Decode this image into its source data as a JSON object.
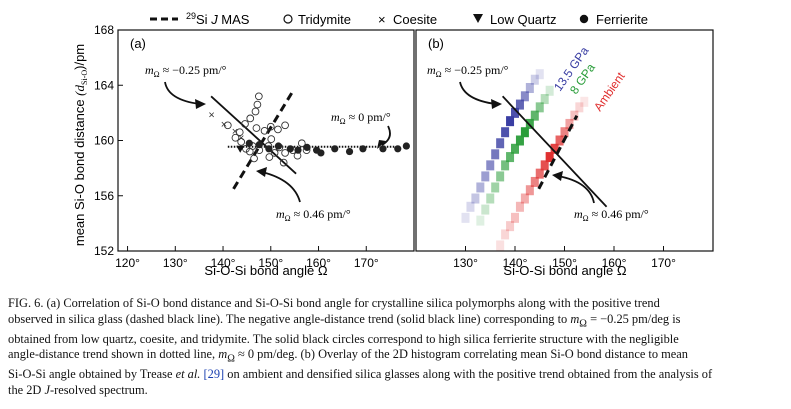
{
  "legend": {
    "entries": [
      {
        "marker": "dashed-line",
        "label_pre": "29",
        "label_main": "Si ",
        "label_italic": "J",
        "label_post": " MAS"
      },
      {
        "marker": "open-circle",
        "label": "Tridymite"
      },
      {
        "marker": "cross",
        "label": "Coesite"
      },
      {
        "marker": "down-triangle",
        "label": "Low Quartz"
      },
      {
        "marker": "filled-circle",
        "label": "Ferrierite"
      }
    ]
  },
  "chart_data": [
    {
      "type": "scatter",
      "panel_label": "(a)",
      "ylabel": "mean Si-O bond distance  (dSi-O)/pm",
      "ylabel_main": "mean Si-O bond distance  ",
      "ylabel_paren": "(d",
      "ylabel_sub": "Si-O",
      "ylabel_tail": ")/pm",
      "xlabel": "Si-O-Si bond angle Ω",
      "xlim": [
        118,
        180
      ],
      "ylim": [
        152,
        168
      ],
      "x_ticks": [
        "120°",
        "130°",
        "140°",
        "150°",
        "160°",
        "170°"
      ],
      "x_tick_values": [
        120,
        130,
        140,
        150,
        160,
        170
      ],
      "y_ticks": [
        "152",
        "156",
        "160",
        "164",
        "168"
      ],
      "y_tick_values": [
        152,
        156,
        160,
        164,
        168
      ],
      "grid": false,
      "series": [
        {
          "name": "Tridymite",
          "marker": "open-circle",
          "points": [
            [
              147.5,
              163.2
            ],
            [
              147.2,
              162.6
            ],
            [
              146.8,
              162.1
            ],
            [
              141,
              161.1
            ],
            [
              143.5,
              160.6
            ],
            [
              144.6,
              161.2
            ],
            [
              145.7,
              161.6
            ],
            [
              147,
              160.9
            ],
            [
              148.7,
              160.7
            ],
            [
              150,
              161
            ],
            [
              151.5,
              160.8
            ],
            [
              153,
              161.1
            ],
            [
              142.6,
              160.2
            ],
            [
              143.8,
              159.9
            ],
            [
              144.8,
              159.4
            ],
            [
              146.2,
              159.6
            ],
            [
              147.6,
              159.3
            ],
            [
              149.5,
              159.6
            ],
            [
              150.8,
              159.1
            ],
            [
              149.7,
              158.8
            ],
            [
              151.8,
              159.5
            ],
            [
              153,
              159.1
            ],
            [
              154.6,
              159.3
            ],
            [
              155.6,
              158.9
            ],
            [
              156.5,
              159.8
            ],
            [
              157.5,
              159.3
            ],
            [
              146.5,
              158.7
            ],
            [
              152.7,
              158.4
            ],
            [
              145.6,
              159.2
            ],
            [
              150.1,
              160.1
            ]
          ]
        },
        {
          "name": "Coesite",
          "marker": "cross",
          "points": [
            [
              137.6,
              161.9
            ],
            [
              140.2,
              161.2
            ],
            [
              142.5,
              160.7
            ],
            [
              143.8,
              160.2
            ]
          ]
        },
        {
          "name": "Low Quartz",
          "marker": "down-triangle",
          "points": [
            [
              143.6,
              159.4
            ]
          ]
        },
        {
          "name": "Ferrierite",
          "marker": "filled-circle",
          "points": [
            [
              145.5,
              159.8
            ],
            [
              147.6,
              159.7
            ],
            [
              149.6,
              159.4
            ],
            [
              151.6,
              159.6
            ],
            [
              154.1,
              159.4
            ],
            [
              155.7,
              159.3
            ],
            [
              157.6,
              159.5
            ],
            [
              159.6,
              159.3
            ],
            [
              160.5,
              159.1
            ],
            [
              163.4,
              159.4
            ],
            [
              166.5,
              159.2
            ],
            [
              169.3,
              159.4
            ],
            [
              173.5,
              159.4
            ],
            [
              176.6,
              159.4
            ],
            [
              178.4,
              159.6
            ]
          ]
        }
      ],
      "trend_lines": {
        "negative_solid": [
          [
            137.5,
            163.2
          ],
          [
            155.3,
            157.6
          ]
        ],
        "positive_dashed": [
          [
            142.2,
            156.5
          ],
          [
            154.5,
            163.5
          ]
        ],
        "dotted_flat": [
          [
            141,
            159.55
          ],
          [
            177,
            159.55
          ]
        ]
      },
      "annotations": [
        {
          "text_pre": "m",
          "text_sub": "Ω",
          "text_post": " ≈ −0.25 pm/°"
        },
        {
          "text_pre": "m",
          "text_sub": "Ω",
          "text_post": " ≈ 0 pm/°"
        },
        {
          "text_pre": "m",
          "text_sub": "Ω",
          "text_post": " ≈ 0.46 pm/°"
        }
      ]
    },
    {
      "type": "heatmap",
      "panel_label": "(b)",
      "xlabel": "Si-O-Si bond angle Ω",
      "xlim": [
        120,
        180
      ],
      "ylim": [
        152,
        168
      ],
      "x_ticks": [
        "130°",
        "140°",
        "150°",
        "160°",
        "170°"
      ],
      "x_tick_values": [
        130,
        140,
        150,
        160,
        170
      ],
      "grid": false,
      "series": [
        {
          "name": "13.5 GPa",
          "color": "#3a3ea3",
          "cells": [
            [
              130,
              154.4,
              0.15
            ],
            [
              131,
              155.2,
              0.2
            ],
            [
              132,
              155.8,
              0.3
            ],
            [
              133,
              156.6,
              0.4
            ],
            [
              134,
              157.4,
              0.5
            ],
            [
              135,
              158.2,
              0.6
            ],
            [
              136,
              159,
              0.7
            ],
            [
              137,
              159.8,
              0.8
            ],
            [
              138,
              160.6,
              0.9
            ],
            [
              139,
              161.4,
              1
            ],
            [
              140,
              162,
              0.9
            ],
            [
              141,
              162.6,
              0.8
            ],
            [
              142,
              163.2,
              0.6
            ],
            [
              143,
              163.8,
              0.4
            ],
            [
              144,
              164.4,
              0.25
            ],
            [
              145,
              164.8,
              0.15
            ]
          ]
        },
        {
          "name": "8 GPa",
          "color": "#2a9d3a",
          "cells": [
            [
              133,
              154.2,
              0.15
            ],
            [
              134,
              155,
              0.25
            ],
            [
              135,
              155.8,
              0.35
            ],
            [
              136,
              156.6,
              0.45
            ],
            [
              137,
              157.4,
              0.55
            ],
            [
              138,
              158.2,
              0.65
            ],
            [
              139,
              158.8,
              0.75
            ],
            [
              140,
              159.4,
              0.85
            ],
            [
              141,
              160,
              0.95
            ],
            [
              142,
              160.6,
              1
            ],
            [
              143,
              161.2,
              0.9
            ],
            [
              144,
              161.8,
              0.75
            ],
            [
              145,
              162.4,
              0.55
            ],
            [
              146,
              163,
              0.35
            ],
            [
              147,
              163.6,
              0.2
            ]
          ]
        },
        {
          "name": "Ambient",
          "color": "#e03030",
          "cells": [
            [
              137,
              152.4,
              0.15
            ],
            [
              138,
              153.2,
              0.2
            ],
            [
              139,
              153.8,
              0.25
            ],
            [
              140,
              154.4,
              0.3
            ],
            [
              141,
              155.2,
              0.35
            ],
            [
              142,
              155.8,
              0.4
            ],
            [
              143,
              156.4,
              0.5
            ],
            [
              144,
              157,
              0.6
            ],
            [
              145,
              157.6,
              0.7
            ],
            [
              146,
              158.2,
              0.85
            ],
            [
              147,
              158.8,
              1
            ],
            [
              148,
              159.4,
              0.9
            ],
            [
              149,
              160,
              0.75
            ],
            [
              150,
              160.6,
              0.6
            ],
            [
              151,
              161.2,
              0.45
            ],
            [
              152,
              161.8,
              0.3
            ],
            [
              153,
              162.4,
              0.2
            ],
            [
              154,
              162.8,
              0.12
            ]
          ]
        }
      ],
      "trend_lines": {
        "negative_solid": [
          [
            137.5,
            163.2
          ],
          [
            158.5,
            155.2
          ]
        ],
        "positive_dashed": [
          [
            144.8,
            156.5
          ],
          [
            152.5,
            161.8
          ]
        ]
      },
      "annotations": [
        {
          "text_pre": "m",
          "text_sub": "Ω",
          "text_post": " ≈ −0.25 pm/°"
        },
        {
          "text_pre": "m",
          "text_sub": "Ω",
          "text_post": " ≈ 0.46 pm/°"
        }
      ]
    }
  ],
  "caption": {
    "lines": [
      [
        {
          "t": "FIG. 6.  (a) Correlation of Si-O bond distance and Si-O-Si bond angle for crystalline silica polymorphs along with the positive trend"
        }
      ],
      [
        {
          "t": "observed in silica glass (dashed black line). The negative angle-distance trend (solid black line) corresponding to "
        },
        {
          "t": "m",
          "i": true
        },
        {
          "t": "Ω",
          "sub": true
        },
        {
          "t": " = −0.25 pm/deg is"
        }
      ],
      [
        {
          "t": "obtained from low quartz, coesite, and tridymite. The solid black circles correspond to high silica ferrierite structure with the negligible"
        }
      ],
      [
        {
          "t": "angle-distance trend shown in dotted line, "
        },
        {
          "t": "m",
          "i": true
        },
        {
          "t": "Ω",
          "sub": true
        },
        {
          "t": " ≈ 0 pm/deg. (b) Overlay of the 2D histogram correlating mean Si-O bond distance to mean"
        }
      ],
      [
        {
          "t": "Si-O-Si angle obtained by Trease "
        },
        {
          "t": "et al.",
          "i": true
        },
        {
          "t": " "
        },
        {
          "t": "[29]",
          "ref": true
        },
        {
          "t": " on ambient and densified silica glasses along with the positive trend obtained from the analysis of"
        }
      ],
      [
        {
          "t": "the 2D "
        },
        {
          "t": "J",
          "i": true
        },
        {
          "t": "-resolved spectrum."
        }
      ]
    ]
  }
}
